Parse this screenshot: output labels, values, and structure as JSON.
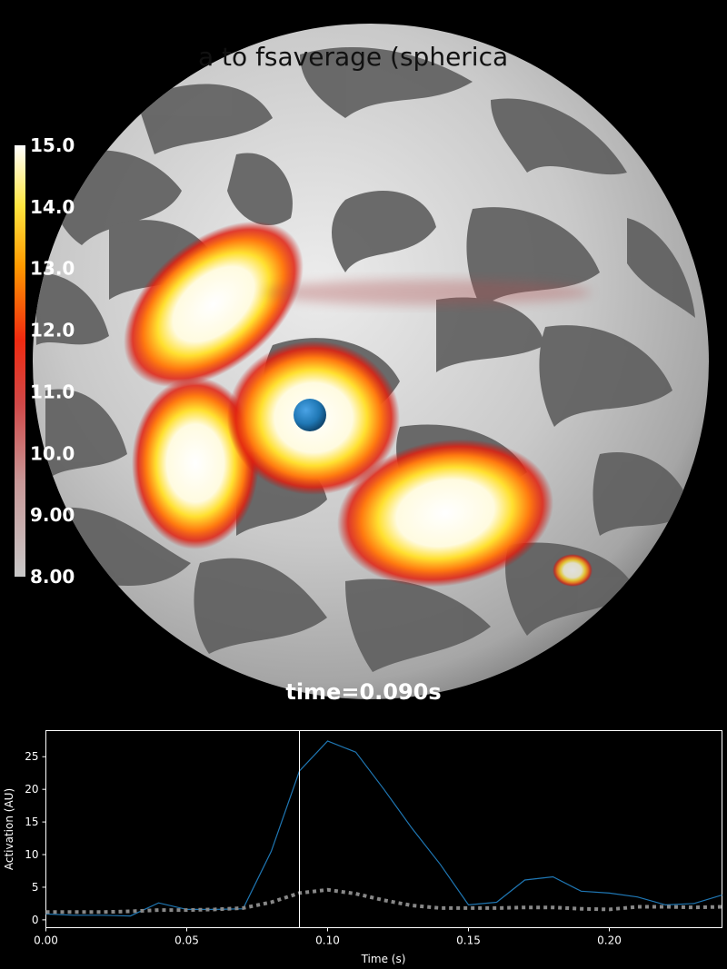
{
  "brain_view": {
    "title_visible": "a to fsaverage (spherica",
    "time_label": "time=0.090s",
    "surface": "inflated",
    "source_marker_color": "#1f77b4",
    "colormap": {
      "name": "hot",
      "tick_labels": [
        "15.0",
        "14.0",
        "13.0",
        "12.0",
        "11.0",
        "10.0",
        "9.00",
        "8.00"
      ],
      "min": 8.0,
      "max": 15.0
    }
  },
  "colors": {
    "background": "#000000",
    "cortex_light": "#d0d0d0",
    "cortex_dark": "#5e5e5e",
    "main_series": "#1f77b4",
    "secondary_series": "#888888",
    "cursor": "#ffffff"
  },
  "chart_data": {
    "type": "line",
    "xlabel": "Time (s)",
    "ylabel": "Activation (AU)",
    "xlim": [
      0.0,
      0.24
    ],
    "ylim": [
      -1.2,
      29
    ],
    "xticks": [
      "0.00",
      "0.05",
      "0.10",
      "0.15",
      "0.20"
    ],
    "yticks": [
      "0",
      "5",
      "10",
      "15",
      "20",
      "25"
    ],
    "current_time": 0.09,
    "series": [
      {
        "style": "solid",
        "x": [
          0.0,
          0.01,
          0.02,
          0.03,
          0.04,
          0.05,
          0.06,
          0.07,
          0.08,
          0.09,
          0.1,
          0.11,
          0.12,
          0.13,
          0.14,
          0.15,
          0.16,
          0.17,
          0.18,
          0.19,
          0.2,
          0.21,
          0.22,
          0.23,
          0.24
        ],
        "y": [
          0.9,
          0.7,
          0.7,
          0.6,
          2.6,
          1.6,
          1.6,
          1.7,
          10.5,
          22.8,
          27.4,
          25.7,
          20.0,
          14.0,
          8.5,
          2.3,
          2.7,
          6.1,
          6.6,
          4.4,
          4.1,
          3.5,
          2.3,
          2.5,
          3.8
        ]
      },
      {
        "style": "dotted",
        "x": [
          0.0,
          0.01,
          0.02,
          0.03,
          0.04,
          0.05,
          0.06,
          0.07,
          0.08,
          0.09,
          0.1,
          0.11,
          0.12,
          0.13,
          0.14,
          0.15,
          0.16,
          0.17,
          0.18,
          0.19,
          0.2,
          0.21,
          0.22,
          0.23,
          0.24
        ],
        "y": [
          1.2,
          1.2,
          1.2,
          1.3,
          1.5,
          1.5,
          1.6,
          1.8,
          2.7,
          4.1,
          4.6,
          4.0,
          3.0,
          2.2,
          1.8,
          1.8,
          1.8,
          1.9,
          1.9,
          1.7,
          1.6,
          2.0,
          2.0,
          1.9,
          2.0
        ]
      }
    ]
  }
}
